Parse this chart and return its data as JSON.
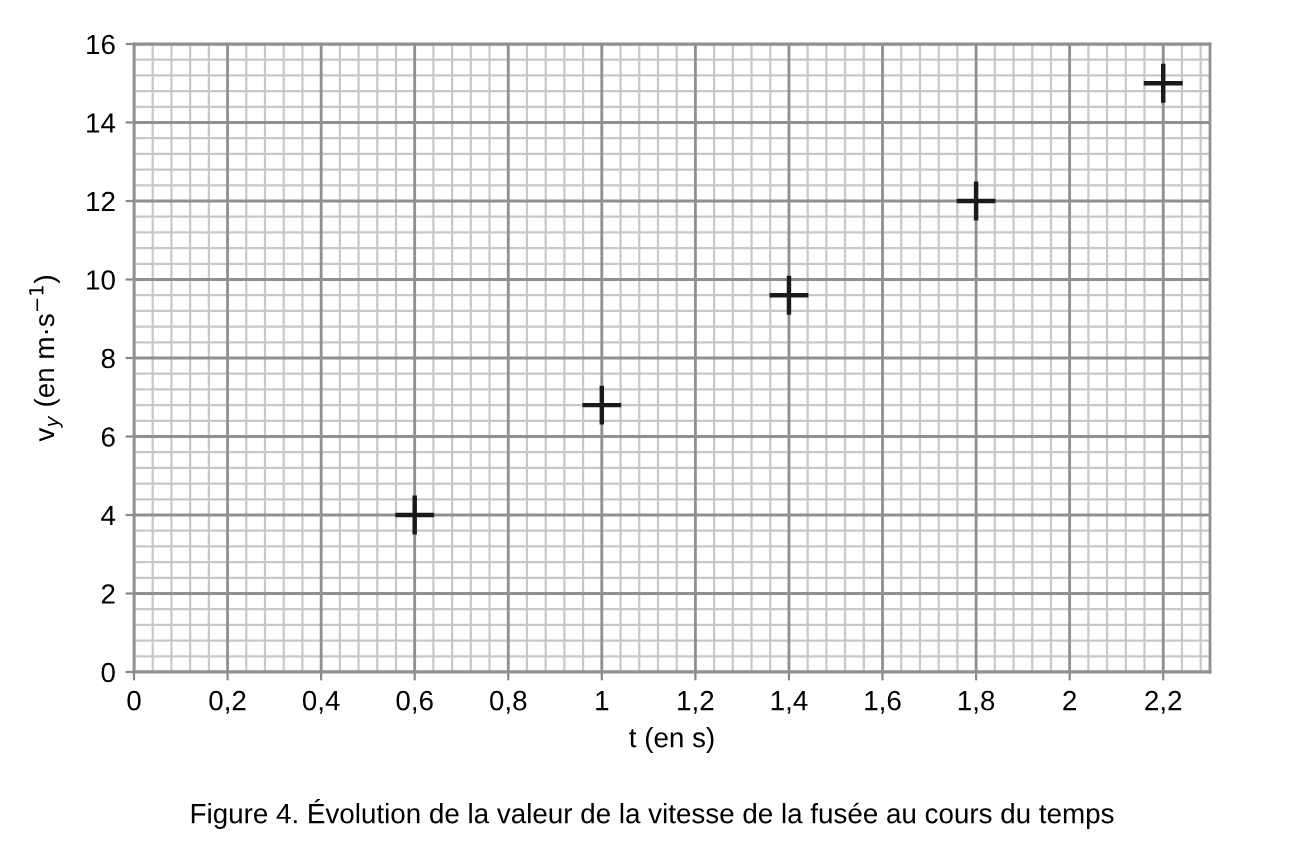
{
  "chart_data": {
    "type": "scatter",
    "title": "Figure 4. Évolution de la valeur de la vitesse de la fusée au cours du temps",
    "xlabel": "t (en s)",
    "ylabel": "v$_{y}$ (en m·s$^{−1}$)",
    "x": [
      0.6,
      1.0,
      1.4,
      1.8,
      2.2
    ],
    "series": [
      {
        "color": "#1a1a1a",
        "values": [
          4,
          6.8,
          9.6,
          12,
          15
        ]
      }
    ],
    "marker": "cross",
    "grid": true,
    "xlim": [
      0,
      2.3
    ],
    "xticks": [
      0,
      {
        "value": 0.2,
        "label": "0,2"
      },
      {
        "value": 0.4,
        "label": "0,4"
      },
      {
        "value": 0.6,
        "label": "0,6"
      },
      {
        "value": 0.8,
        "label": "0,8"
      },
      1,
      {
        "value": 1.2,
        "label": "1,2"
      },
      {
        "value": 1.4,
        "label": "1,4"
      },
      {
        "value": 1.6,
        "label": "1,6"
      },
      {
        "value": 1.8,
        "label": "1,8"
      },
      2,
      {
        "value": 2.2,
        "label": "2,2"
      }
    ],
    "ylim": [
      0,
      16
    ],
    "yticks": [
      0,
      2,
      4,
      6,
      8,
      10,
      12,
      14,
      16
    ]
  }
}
